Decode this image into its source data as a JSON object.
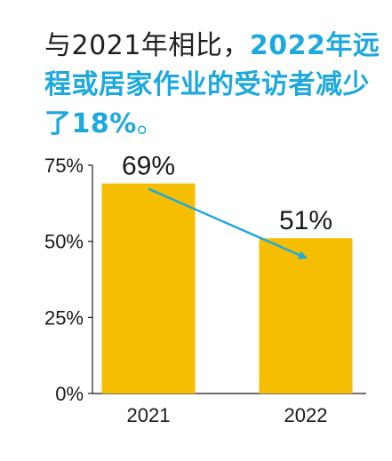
{
  "title": {
    "part1": "与2021年相比，",
    "part2": "2022年远程或居家作业的受访者减少了18%",
    "part3": "。"
  },
  "chart_data": {
    "type": "bar",
    "categories": [
      "2021",
      "2022"
    ],
    "values": [
      69,
      51
    ],
    "data_labels": [
      "69%",
      "51%"
    ],
    "ylim": [
      0,
      75
    ],
    "yticks": [
      0,
      25,
      50,
      75
    ],
    "ytick_labels": [
      "0%",
      "25%",
      "50%",
      "75%"
    ],
    "xlabel": "",
    "ylabel": "",
    "bar_color": "#f6be00",
    "arrow_color": "#1ea9de",
    "grid": false
  }
}
